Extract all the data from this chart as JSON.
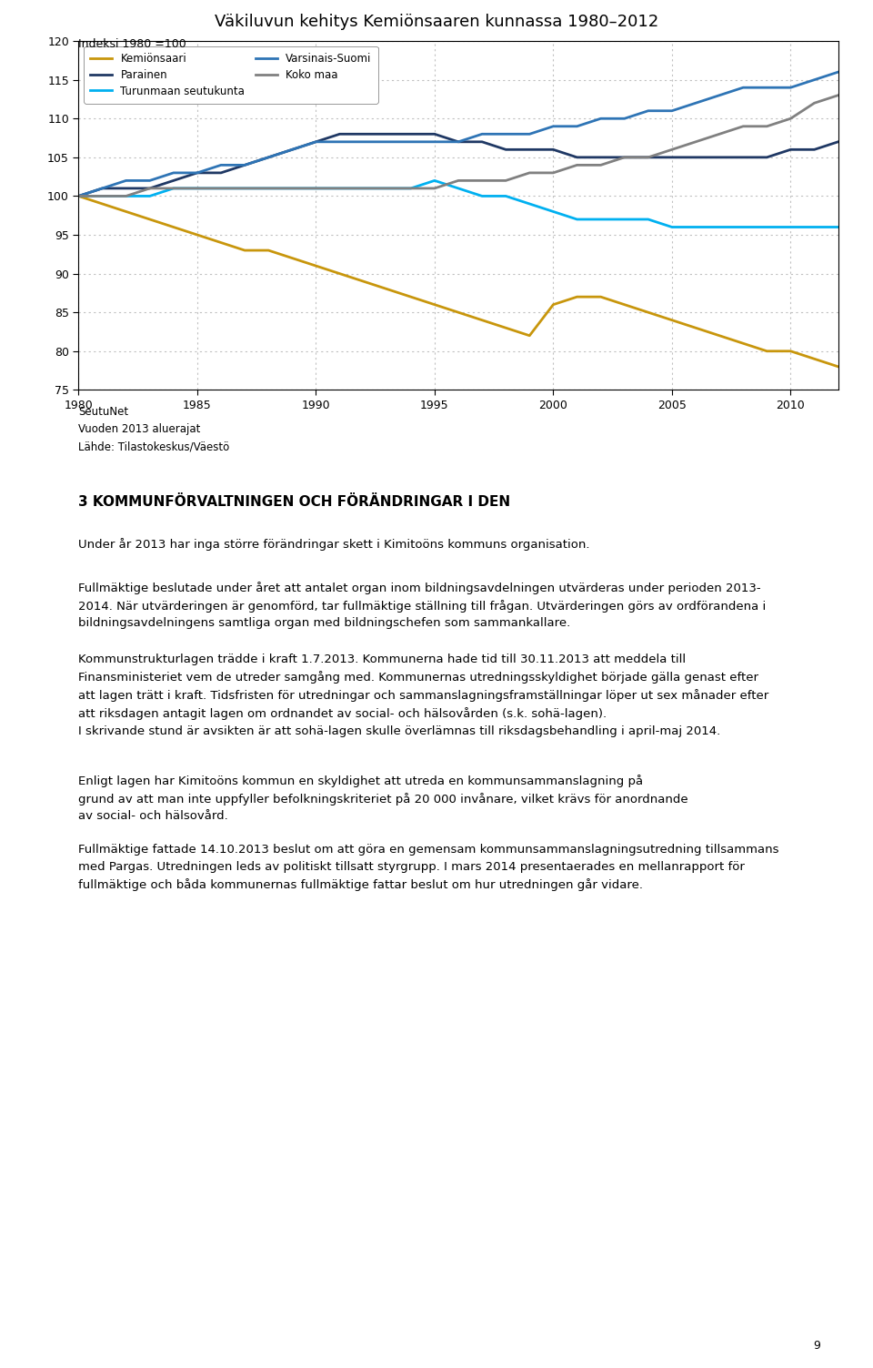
{
  "title": "Väkiluvun kehitys Kemiönsaaren kunnassa 1980–2012",
  "ylabel": "Indeksi 1980 =100",
  "xlim": [
    1980,
    2012
  ],
  "ylim": [
    75,
    120
  ],
  "yticks": [
    75,
    80,
    85,
    90,
    95,
    100,
    105,
    110,
    115,
    120
  ],
  "xticks": [
    1980,
    1985,
    1990,
    1995,
    2000,
    2005,
    2010
  ],
  "series": {
    "Kemiönsaari": {
      "color": "#C8960C",
      "years": [
        1980,
        1981,
        1982,
        1983,
        1984,
        1985,
        1986,
        1987,
        1988,
        1989,
        1990,
        1991,
        1992,
        1993,
        1994,
        1995,
        1996,
        1997,
        1998,
        1999,
        2000,
        2001,
        2002,
        2003,
        2004,
        2005,
        2006,
        2007,
        2008,
        2009,
        2010,
        2011,
        2012
      ],
      "values": [
        100,
        99,
        98,
        97,
        96,
        95,
        94,
        93,
        93,
        92,
        91,
        90,
        89,
        88,
        87,
        86,
        85,
        84,
        83,
        82,
        86,
        87,
        87,
        86,
        85,
        84,
        83,
        82,
        81,
        80,
        80,
        79,
        78
      ]
    },
    "Parainen": {
      "color": "#1F3864",
      "years": [
        1980,
        1981,
        1982,
        1983,
        1984,
        1985,
        1986,
        1987,
        1988,
        1989,
        1990,
        1991,
        1992,
        1993,
        1994,
        1995,
        1996,
        1997,
        1998,
        1999,
        2000,
        2001,
        2002,
        2003,
        2004,
        2005,
        2006,
        2007,
        2008,
        2009,
        2010,
        2011,
        2012
      ],
      "values": [
        100,
        101,
        101,
        101,
        102,
        103,
        103,
        104,
        105,
        106,
        107,
        108,
        108,
        108,
        108,
        108,
        107,
        107,
        106,
        106,
        106,
        105,
        105,
        105,
        105,
        105,
        105,
        105,
        105,
        105,
        106,
        106,
        107
      ]
    },
    "Turunmaan seutukunta": {
      "color": "#00B0F0",
      "years": [
        1980,
        1981,
        1982,
        1983,
        1984,
        1985,
        1986,
        1987,
        1988,
        1989,
        1990,
        1991,
        1992,
        1993,
        1994,
        1995,
        1996,
        1997,
        1998,
        1999,
        2000,
        2001,
        2002,
        2003,
        2004,
        2005,
        2006,
        2007,
        2008,
        2009,
        2010,
        2011,
        2012
      ],
      "values": [
        100,
        100,
        100,
        100,
        101,
        101,
        101,
        101,
        101,
        101,
        101,
        101,
        101,
        101,
        101,
        102,
        101,
        100,
        100,
        99,
        98,
        97,
        97,
        97,
        97,
        96,
        96,
        96,
        96,
        96,
        96,
        96,
        96
      ]
    },
    "Varsinais-Suomi": {
      "color": "#2E74B5",
      "years": [
        1980,
        1981,
        1982,
        1983,
        1984,
        1985,
        1986,
        1987,
        1988,
        1989,
        1990,
        1991,
        1992,
        1993,
        1994,
        1995,
        1996,
        1997,
        1998,
        1999,
        2000,
        2001,
        2002,
        2003,
        2004,
        2005,
        2006,
        2007,
        2008,
        2009,
        2010,
        2011,
        2012
      ],
      "values": [
        100,
        101,
        102,
        102,
        103,
        103,
        104,
        104,
        105,
        106,
        107,
        107,
        107,
        107,
        107,
        107,
        107,
        108,
        108,
        108,
        109,
        109,
        110,
        110,
        111,
        111,
        112,
        113,
        114,
        114,
        114,
        115,
        116
      ]
    },
    "Koko maa": {
      "color": "#808080",
      "years": [
        1980,
        1981,
        1982,
        1983,
        1984,
        1985,
        1986,
        1987,
        1988,
        1989,
        1990,
        1991,
        1992,
        1993,
        1994,
        1995,
        1996,
        1997,
        1998,
        1999,
        2000,
        2001,
        2002,
        2003,
        2004,
        2005,
        2006,
        2007,
        2008,
        2009,
        2010,
        2011,
        2012
      ],
      "values": [
        100,
        100,
        100,
        101,
        101,
        101,
        101,
        101,
        101,
        101,
        101,
        101,
        101,
        101,
        101,
        101,
        102,
        102,
        102,
        103,
        103,
        104,
        104,
        105,
        105,
        106,
        107,
        108,
        109,
        109,
        110,
        112,
        113
      ]
    }
  },
  "source_text": "SeutuNet\nVuoden 2013 aluerajat\nLähde: Tilastokeskus/Väestö",
  "section_title": "3 KOMMUNFÖRVALTNINGEN OCH FÖRÄNDRINGAR I DEN",
  "para0": "Under år 2013 har inga större förändringar skett i Kimitoöns kommuns organisation.",
  "para1": "Fullmäktige beslutade under året att antalet organ inom bildningsavdelningen utvärderas under perioden 2013-2014. När utvärderingen är genomförd, tar fullmäktige ställning till frågan. Utvärderingen görs av ordförandena i bildningsavdelningens samtliga organ med bildningschefen som sammankallare.",
  "para2_lines": [
    "Kommunstrukturlagen trädde i kraft 1.7.2013. Kommunerna hade tid till 30.11.2013 att meddela till",
    "Finansministeriet vem de utreder samgång med. Kommunernas utredningsskyldighet började gälla genast efter",
    "att lagen trätt i kraft. Tidsfristen för utredningar och sammanslagningsframställningar löper ut sex månader efter",
    "att riksdagen antagit lagen om ordnandet av social- och hälsovården (s.k. sohä-lagen).",
    "I skrivande stund är avsikten är att sohä-lagen skulle överlämnas till riksdagsbehandling i april-maj 2014."
  ],
  "para3_lines": [
    "Enligt lagen har Kimitoöns kommun en skyldighet att utreda en kommunsammanslagning på",
    "grund av att man inte uppfyller befolkningskriteriet på 20 000 invånare, vilket krävs för anordnande",
    "av social- och hälsovård."
  ],
  "para4_lines": [
    "Fullmäktige fattade 14.10.2013 beslut om att göra en gemensam kommunsammanslagningsutredning tillsammans",
    "med Pargas. Utredningen leds av politiskt tillsatt styrgrupp. I mars 2014 presentaerades en mellanrapport för",
    "fullmäktige och båda kommunernas fullmäktige fattar beslut om hur utredningen går vidare."
  ],
  "page_number": "9",
  "background_color": "#ffffff",
  "grid_color": "#c0c0c0"
}
